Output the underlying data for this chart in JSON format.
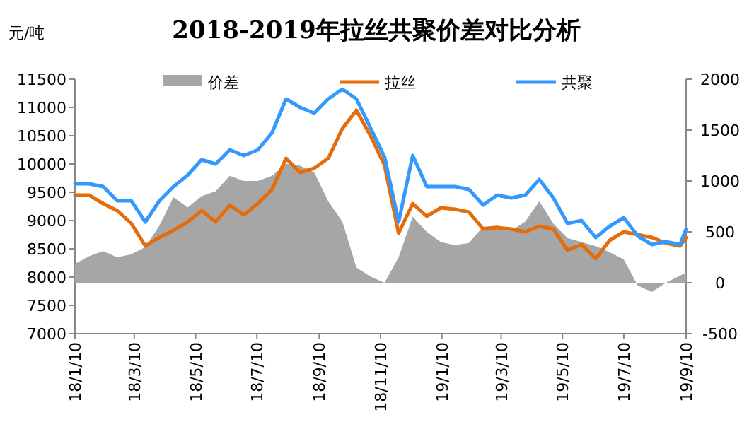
{
  "chart_data": {
    "type": "line",
    "title": "2018-2019年拉丝共聚价差对比分析",
    "ylabel": "元/吨",
    "x": [
      "2018-01-10",
      "2018-01-24",
      "2018-02-07",
      "2018-02-21",
      "2018-03-07",
      "2018-03-21",
      "2018-04-04",
      "2018-04-18",
      "2018-05-02",
      "2018-05-16",
      "2018-05-30",
      "2018-06-13",
      "2018-06-27",
      "2018-07-11",
      "2018-07-25",
      "2018-08-08",
      "2018-08-22",
      "2018-09-05",
      "2018-09-19",
      "2018-10-03",
      "2018-10-17",
      "2018-10-31",
      "2018-11-14",
      "2018-11-28",
      "2018-12-12",
      "2018-12-26",
      "2019-01-09",
      "2019-01-23",
      "2019-02-06",
      "2019-02-20",
      "2019-03-06",
      "2019-03-20",
      "2019-04-03",
      "2019-04-17",
      "2019-05-01",
      "2019-05-15",
      "2019-05-29",
      "2019-06-12",
      "2019-06-26",
      "2019-07-10",
      "2019-07-24",
      "2019-08-07",
      "2019-08-21",
      "2019-09-04",
      "2019-09-10"
    ],
    "series": [
      {
        "name": "价差",
        "type": "area",
        "axis": "y2",
        "color": "#a6a6a6",
        "values": [
          185,
          260,
          310,
          250,
          280,
          350,
          560,
          840,
          740,
          850,
          900,
          1050,
          1000,
          1000,
          1050,
          1170,
          1150,
          1085,
          800,
          600,
          150,
          60,
          0,
          250,
          650,
          500,
          400,
          370,
          390,
          550,
          560,
          510,
          600,
          800,
          580,
          440,
          400,
          360,
          300,
          230,
          -30,
          -90,
          0,
          70,
          100
        ]
      },
      {
        "name": "拉丝",
        "type": "line",
        "color": "#e46c0a",
        "values": [
          9450,
          9450,
          9300,
          9175,
          8950,
          8550,
          8700,
          8825,
          8975,
          9175,
          8975,
          9275,
          9100,
          9300,
          9550,
          10100,
          9850,
          9925,
          10100,
          10625,
          10950,
          10500,
          9975,
          8775,
          9300,
          9075,
          9225,
          9200,
          9150,
          8850,
          8875,
          8850,
          8800,
          8900,
          8850,
          8475,
          8575,
          8325,
          8650,
          8800,
          8750,
          8700,
          8600,
          8550,
          8700
        ]
      },
      {
        "name": "共聚",
        "type": "line",
        "color": "#3399ff",
        "values": [
          9650,
          9650,
          9600,
          9350,
          9350,
          8975,
          9350,
          9600,
          9800,
          10075,
          10000,
          10250,
          10150,
          10250,
          10550,
          11150,
          11000,
          10900,
          11150,
          11325,
          11150,
          10640,
          10125,
          8975,
          10150,
          9600,
          9600,
          9600,
          9550,
          9275,
          9450,
          9400,
          9450,
          9725,
          9400,
          8950,
          9000,
          8700,
          8900,
          9050,
          8725,
          8575,
          8625,
          8575,
          8850
        ]
      }
    ],
    "xlim": [
      "2018-01-10",
      "2019-09-10"
    ],
    "xticks": [
      {
        "value": "2018-01-10",
        "label": "18/1/10"
      },
      {
        "value": "2018-03-10",
        "label": "18/3/10"
      },
      {
        "value": "2018-05-10",
        "label": "18/5/10"
      },
      {
        "value": "2018-07-10",
        "label": "18/7/10"
      },
      {
        "value": "2018-09-10",
        "label": "18/9/10"
      },
      {
        "value": "2018-11-10",
        "label": "18/11/10"
      },
      {
        "value": "2019-01-10",
        "label": "19/1/10"
      },
      {
        "value": "2019-03-10",
        "label": "19/3/10"
      },
      {
        "value": "2019-05-10",
        "label": "19/5/10"
      },
      {
        "value": "2019-07-10",
        "label": "19/7/10"
      },
      {
        "value": "2019-09-10",
        "label": "19/9/10"
      }
    ],
    "ylim": [
      7000,
      11500
    ],
    "yticks": [
      7000,
      7500,
      8000,
      8500,
      9000,
      9500,
      10000,
      10500,
      11000,
      11500
    ],
    "y2lim": [
      -500,
      2000
    ],
    "y2ticks": [
      -500,
      0,
      500,
      1000,
      1500,
      2000
    ],
    "legend": "top",
    "grid": false,
    "marker": "none"
  }
}
